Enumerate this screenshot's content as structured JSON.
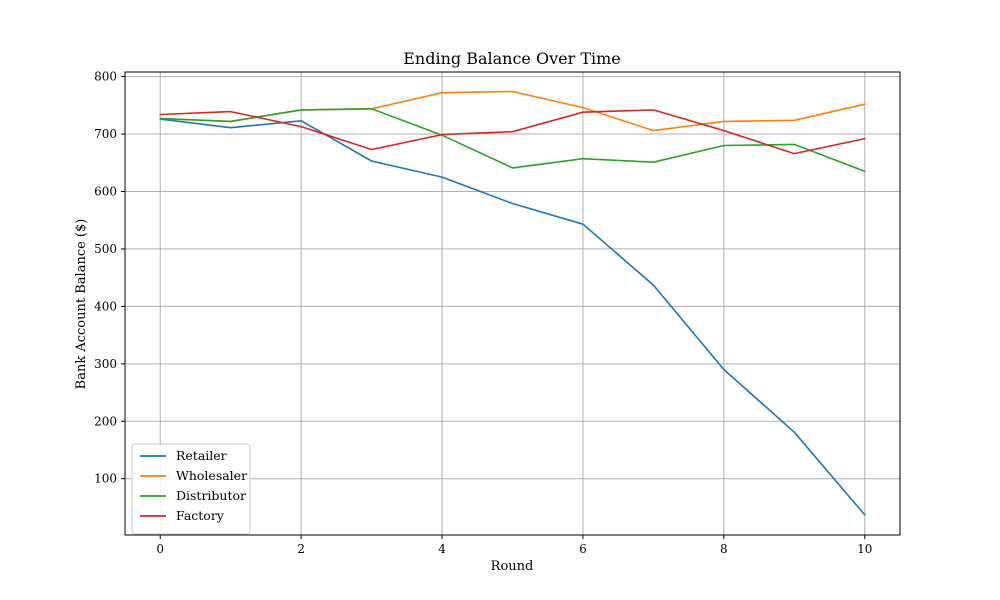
{
  "chart_data": {
    "type": "line",
    "title": "Ending Balance Over Time",
    "xlabel": "Round",
    "ylabel": "Bank Account Balance ($)",
    "x": [
      0,
      1,
      2,
      3,
      4,
      5,
      6,
      7,
      8,
      9,
      10
    ],
    "xlim": [
      -0.5,
      10.5
    ],
    "ylim": [
      2,
      808
    ],
    "xticks": [
      0,
      2,
      4,
      6,
      8,
      10
    ],
    "yticks": [
      100,
      200,
      300,
      400,
      500,
      600,
      700,
      800
    ],
    "grid": true,
    "legend_position": "lower-left",
    "series": [
      {
        "name": "Retailer",
        "color": "#1f77b4",
        "values": [
          726,
          711,
          723,
          653,
          625,
          579,
          543,
          437,
          290,
          181,
          37
        ]
      },
      {
        "name": "Wholesaler",
        "color": "#ff7f0e",
        "values": [
          727,
          722,
          742,
          744,
          772,
          774,
          746,
          706,
          722,
          724,
          752
        ]
      },
      {
        "name": "Distributor",
        "color": "#2ca02c",
        "values": [
          727,
          722,
          742,
          744,
          698,
          641,
          657,
          651,
          680,
          682,
          635
        ]
      },
      {
        "name": "Factory",
        "color": "#d62728",
        "values": [
          734,
          739,
          713,
          673,
          699,
          704,
          738,
          742,
          706,
          666,
          692
        ]
      }
    ]
  }
}
